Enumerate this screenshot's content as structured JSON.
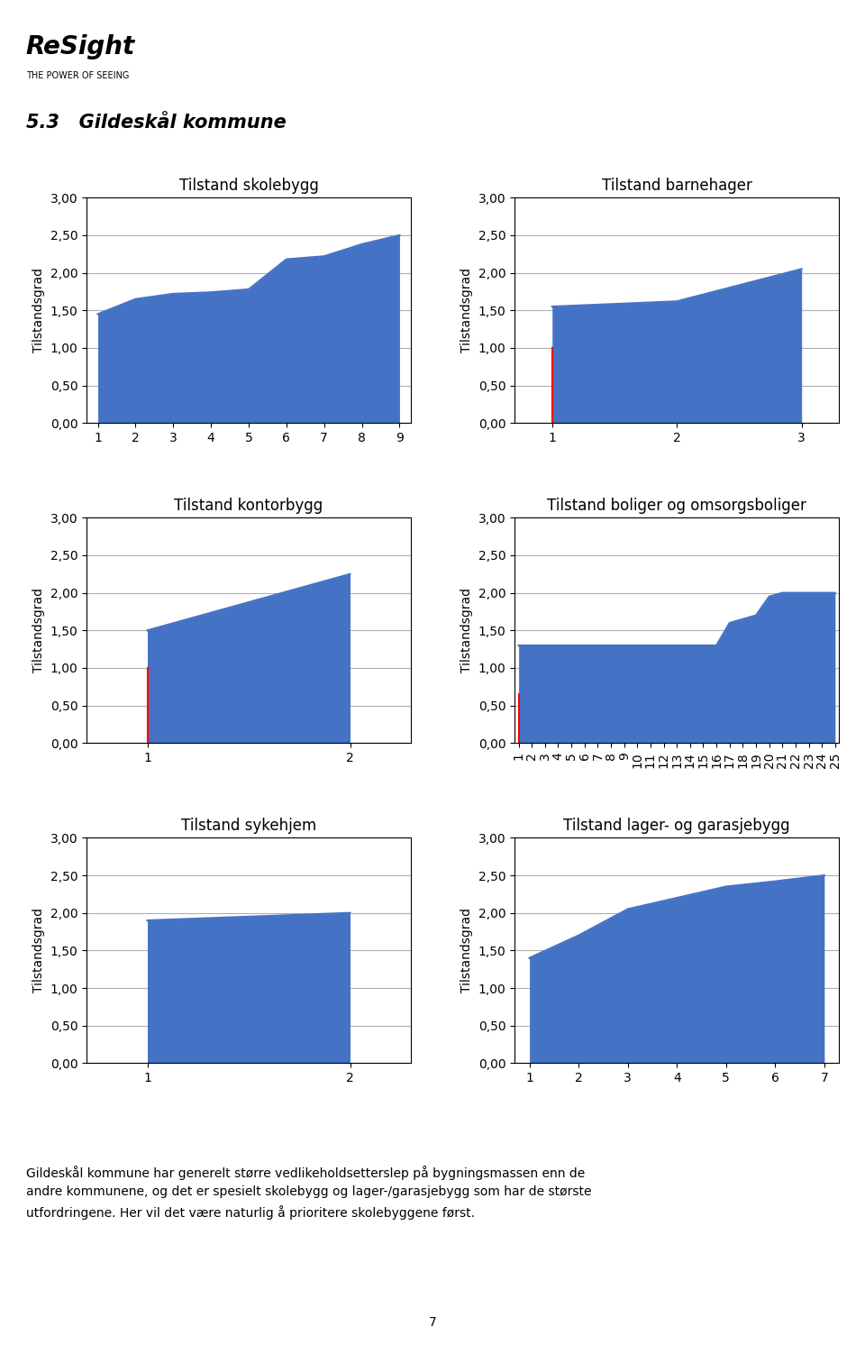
{
  "title": "5.3   Gildeskål kommune",
  "annotations": [
    "ReSight",
    "THE POWER OF SEEING",
    "Gildeskål kommune har generelt større vedlikeholdsetterslep på bygningsmassen enn de\nandre kommunene, og det er spesielt skolebygg og lager-/garasjebygg som har de største\nutfordringene. Her vil det være naturlig å prioritere skolebyggene først.",
    "7"
  ],
  "chart_data": [
    {
      "type": "area",
      "title": "Tilstand skolebygg",
      "y_label": "Tilstandsgrad",
      "color": "#4472C4",
      "x": [
        1,
        2,
        3,
        4,
        5,
        6,
        7,
        8,
        9
      ],
      "values": [
        1.45,
        1.65,
        1.72,
        1.74,
        1.78,
        2.18,
        2.22,
        2.38,
        2.5
      ],
      "xlim": [
        0.7,
        9.3
      ],
      "xticks": [
        1,
        2,
        3,
        4,
        5,
        6,
        7,
        8,
        9
      ],
      "ylim": [
        0,
        3.0
      ],
      "yticks": [
        {
          "value": 0.0,
          "label": "0,00"
        },
        {
          "value": 0.5,
          "label": "0,50"
        },
        {
          "value": 1.0,
          "label": "1,00"
        },
        {
          "value": 1.5,
          "label": "1,50"
        },
        {
          "value": 2.0,
          "label": "2,00"
        },
        {
          "value": 2.5,
          "label": "2,50"
        },
        {
          "value": 3.0,
          "label": "3,00"
        }
      ],
      "grid": "y",
      "vline": null
    },
    {
      "type": "area",
      "title": "Tilstand barnehager",
      "y_label": "Tilstandsgrad",
      "color": "#4472C4",
      "x": [
        1,
        2,
        3
      ],
      "values": [
        1.55,
        1.62,
        2.05
      ],
      "xlim": [
        0.7,
        3.3
      ],
      "xticks": [
        1,
        2,
        3
      ],
      "ylim": [
        0,
        3.0
      ],
      "yticks": [
        {
          "value": 0.0,
          "label": "0,00"
        },
        {
          "value": 0.5,
          "label": "0,50"
        },
        {
          "value": 1.0,
          "label": "1,00"
        },
        {
          "value": 1.5,
          "label": "1,50"
        },
        {
          "value": 2.0,
          "label": "2,00"
        },
        {
          "value": 2.5,
          "label": "2,50"
        },
        {
          "value": 3.0,
          "label": "3,00"
        }
      ],
      "grid": "y",
      "vline": {
        "x": 1,
        "y0": 0,
        "y1": 1.0,
        "color": "#FF0000"
      }
    },
    {
      "type": "area",
      "title": "Tilstand kontorbygg",
      "y_label": "Tilstandsgrad",
      "color": "#4472C4",
      "x": [
        1,
        2
      ],
      "values": [
        1.5,
        2.25
      ],
      "xlim": [
        0.7,
        2.3
      ],
      "xticks": [
        1,
        2
      ],
      "ylim": [
        0,
        3.0
      ],
      "yticks": [
        {
          "value": 0.0,
          "label": "0,00"
        },
        {
          "value": 0.5,
          "label": "0,50"
        },
        {
          "value": 1.0,
          "label": "1,00"
        },
        {
          "value": 1.5,
          "label": "1,50"
        },
        {
          "value": 2.0,
          "label": "2,00"
        },
        {
          "value": 2.5,
          "label": "2,50"
        },
        {
          "value": 3.0,
          "label": "3,00"
        }
      ],
      "grid": "y",
      "vline": {
        "x": 1,
        "y0": 0,
        "y1": 1.0,
        "color": "#FF0000"
      }
    },
    {
      "type": "area",
      "title": "Tilstand boliger og omsorgsboliger",
      "y_label": "Tilstandsgrad",
      "color": "#4472C4",
      "x": [
        1,
        2,
        3,
        4,
        5,
        6,
        7,
        8,
        9,
        10,
        11,
        12,
        13,
        14,
        15,
        16,
        17,
        18,
        19,
        20,
        21,
        22,
        23,
        24,
        25
      ],
      "values": [
        1.3,
        1.3,
        1.3,
        1.3,
        1.3,
        1.3,
        1.3,
        1.3,
        1.3,
        1.3,
        1.3,
        1.3,
        1.3,
        1.3,
        1.3,
        1.3,
        1.6,
        1.65,
        1.7,
        1.95,
        2.0,
        2.0,
        2.0,
        2.0,
        2.0
      ],
      "xlim": [
        0.7,
        25.3
      ],
      "xticks": [
        1,
        2,
        3,
        4,
        5,
        6,
        7,
        8,
        9,
        10,
        11,
        12,
        13,
        14,
        15,
        16,
        17,
        18,
        19,
        20,
        21,
        22,
        23,
        24,
        25
      ],
      "ylim": [
        0,
        3.0
      ],
      "yticks": [
        {
          "value": 0.0,
          "label": "0,00"
        },
        {
          "value": 0.5,
          "label": "0,50"
        },
        {
          "value": 1.0,
          "label": "1,00"
        },
        {
          "value": 1.5,
          "label": "1,50"
        },
        {
          "value": 2.0,
          "label": "2,00"
        },
        {
          "value": 2.5,
          "label": "2,50"
        },
        {
          "value": 3.0,
          "label": "3,00"
        }
      ],
      "grid": "y",
      "vline": {
        "x": 1,
        "y0": 0,
        "y1": 0.65,
        "color": "#FF0000"
      }
    },
    {
      "type": "area",
      "title": "Tilstand sykehjem",
      "y_label": "Tilstandsgrad",
      "color": "#4472C4",
      "x": [
        1,
        2
      ],
      "values": [
        1.9,
        2.0
      ],
      "xlim": [
        0.7,
        2.3
      ],
      "xticks": [
        1,
        2
      ],
      "ylim": [
        0,
        3.0
      ],
      "yticks": [
        {
          "value": 0.0,
          "label": "0,00"
        },
        {
          "value": 0.5,
          "label": "0,50"
        },
        {
          "value": 1.0,
          "label": "1,00"
        },
        {
          "value": 1.5,
          "label": "1,50"
        },
        {
          "value": 2.0,
          "label": "2,00"
        },
        {
          "value": 2.5,
          "label": "2,50"
        },
        {
          "value": 3.0,
          "label": "3,00"
        }
      ],
      "grid": "y",
      "vline": null
    },
    {
      "type": "area",
      "title": "Tilstand lager- og garasjebygg",
      "y_label": "Tilstandsgrad",
      "color": "#4472C4",
      "x": [
        1,
        2,
        3,
        4,
        5,
        6,
        7
      ],
      "values": [
        1.4,
        1.7,
        2.05,
        2.2,
        2.35,
        2.42,
        2.5
      ],
      "xlim": [
        0.7,
        7.3
      ],
      "xticks": [
        1,
        2,
        3,
        4,
        5,
        6,
        7
      ],
      "ylim": [
        0,
        3.0
      ],
      "yticks": [
        {
          "value": 0.0,
          "label": "0,00"
        },
        {
          "value": 0.5,
          "label": "0,50"
        },
        {
          "value": 1.0,
          "label": "1,00"
        },
        {
          "value": 1.5,
          "label": "1,50"
        },
        {
          "value": 2.0,
          "label": "2,00"
        },
        {
          "value": 2.5,
          "label": "2,50"
        },
        {
          "value": 3.0,
          "label": "3,00"
        }
      ],
      "grid": "y",
      "vline": null
    }
  ]
}
